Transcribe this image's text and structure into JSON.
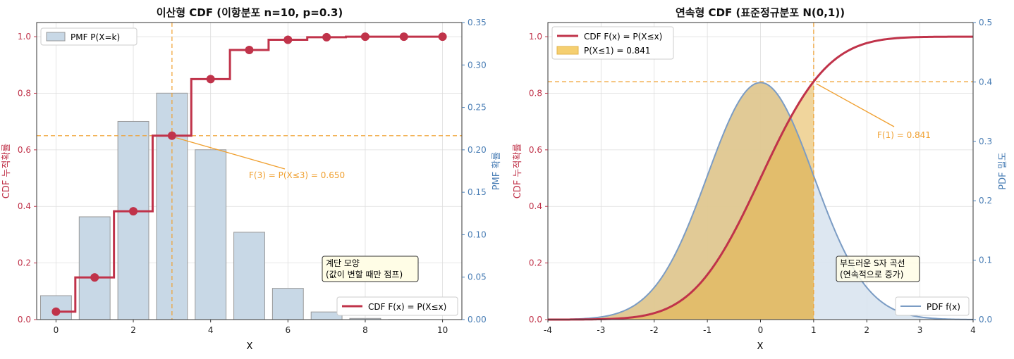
{
  "colors": {
    "cdf": "#c0334a",
    "pmf_fill": "#c8d8e6",
    "pmf_edge": "#999999",
    "pdf_line": "#7b9cc4",
    "pdf_fill": "#d9e4f0",
    "annot": "#f0a030",
    "area_fill": "#e3b34a",
    "right_axis": "#4a7eb5",
    "note_bg": "#fffde6"
  },
  "chart_data": [
    {
      "type": "bar",
      "title": "이산형 CDF (이항분포 n=10, p=0.3)",
      "xlabel": "X",
      "ylabel_left": "CDF 누적확률",
      "ylabel_right": "PMF 확률",
      "x": [
        0,
        1,
        2,
        3,
        4,
        5,
        6,
        7,
        8,
        9,
        10
      ],
      "pmf": [
        0.0282,
        0.1211,
        0.2335,
        0.2668,
        0.2001,
        0.1029,
        0.0368,
        0.009,
        0.0014,
        0.0001,
        0.0
      ],
      "cdf": [
        0.028,
        0.149,
        0.383,
        0.65,
        0.85,
        0.953,
        0.989,
        0.998,
        1.0,
        1.0,
        1.0
      ],
      "xlim": [
        -0.5,
        10.5
      ],
      "ylim_left": [
        0,
        1.05
      ],
      "ylim_right": [
        0,
        0.35
      ],
      "x_ticks": [
        "0",
        "2",
        "4",
        "6",
        "8",
        "10"
      ],
      "y_ticks_left": [
        "0.0",
        "0.2",
        "0.4",
        "0.6",
        "0.8",
        "1.0"
      ],
      "y_ticks_right": [
        "0.00",
        "0.05",
        "0.10",
        "0.15",
        "0.20",
        "0.25",
        "0.30",
        "0.35"
      ],
      "legend_pmf": "PMF P(X=k)",
      "legend_cdf": "CDF F(x) = P(X≤x)",
      "marker_x": 3,
      "marker_y": 0.65,
      "annotation": "F(3) = P(X≤3) = 0.650",
      "note_line1": "계단 모양",
      "note_line2": "(값이 변할 때만 점프)"
    },
    {
      "type": "line",
      "title": "연속형 CDF (표준정규분포 N(0,1))",
      "xlabel": "X",
      "ylabel_left": "CDF 누적확률",
      "ylabel_right": "PDF 밀도",
      "xlim": [
        -4,
        4
      ],
      "ylim_left": [
        0,
        1.05
      ],
      "ylim_right": [
        0,
        0.5
      ],
      "x_ticks": [
        "-4",
        "-3",
        "-2",
        "-1",
        "0",
        "1",
        "2",
        "3",
        "4"
      ],
      "y_ticks_left": [
        "0.0",
        "0.2",
        "0.4",
        "0.6",
        "0.8",
        "1.0"
      ],
      "y_ticks_right": [
        "0.0",
        "0.1",
        "0.2",
        "0.3",
        "0.4",
        "0.5"
      ],
      "legend_cdf": "CDF F(x) = P(X≤x)",
      "legend_area": "P(X≤1) = 0.841",
      "legend_pdf": "PDF f(x)",
      "marker_x": 1,
      "marker_y": 0.841,
      "annotation": "F(1) = 0.841",
      "note_line1": "부드러운 S자 곡선",
      "note_line2": "(연속적으로 증가)"
    }
  ]
}
